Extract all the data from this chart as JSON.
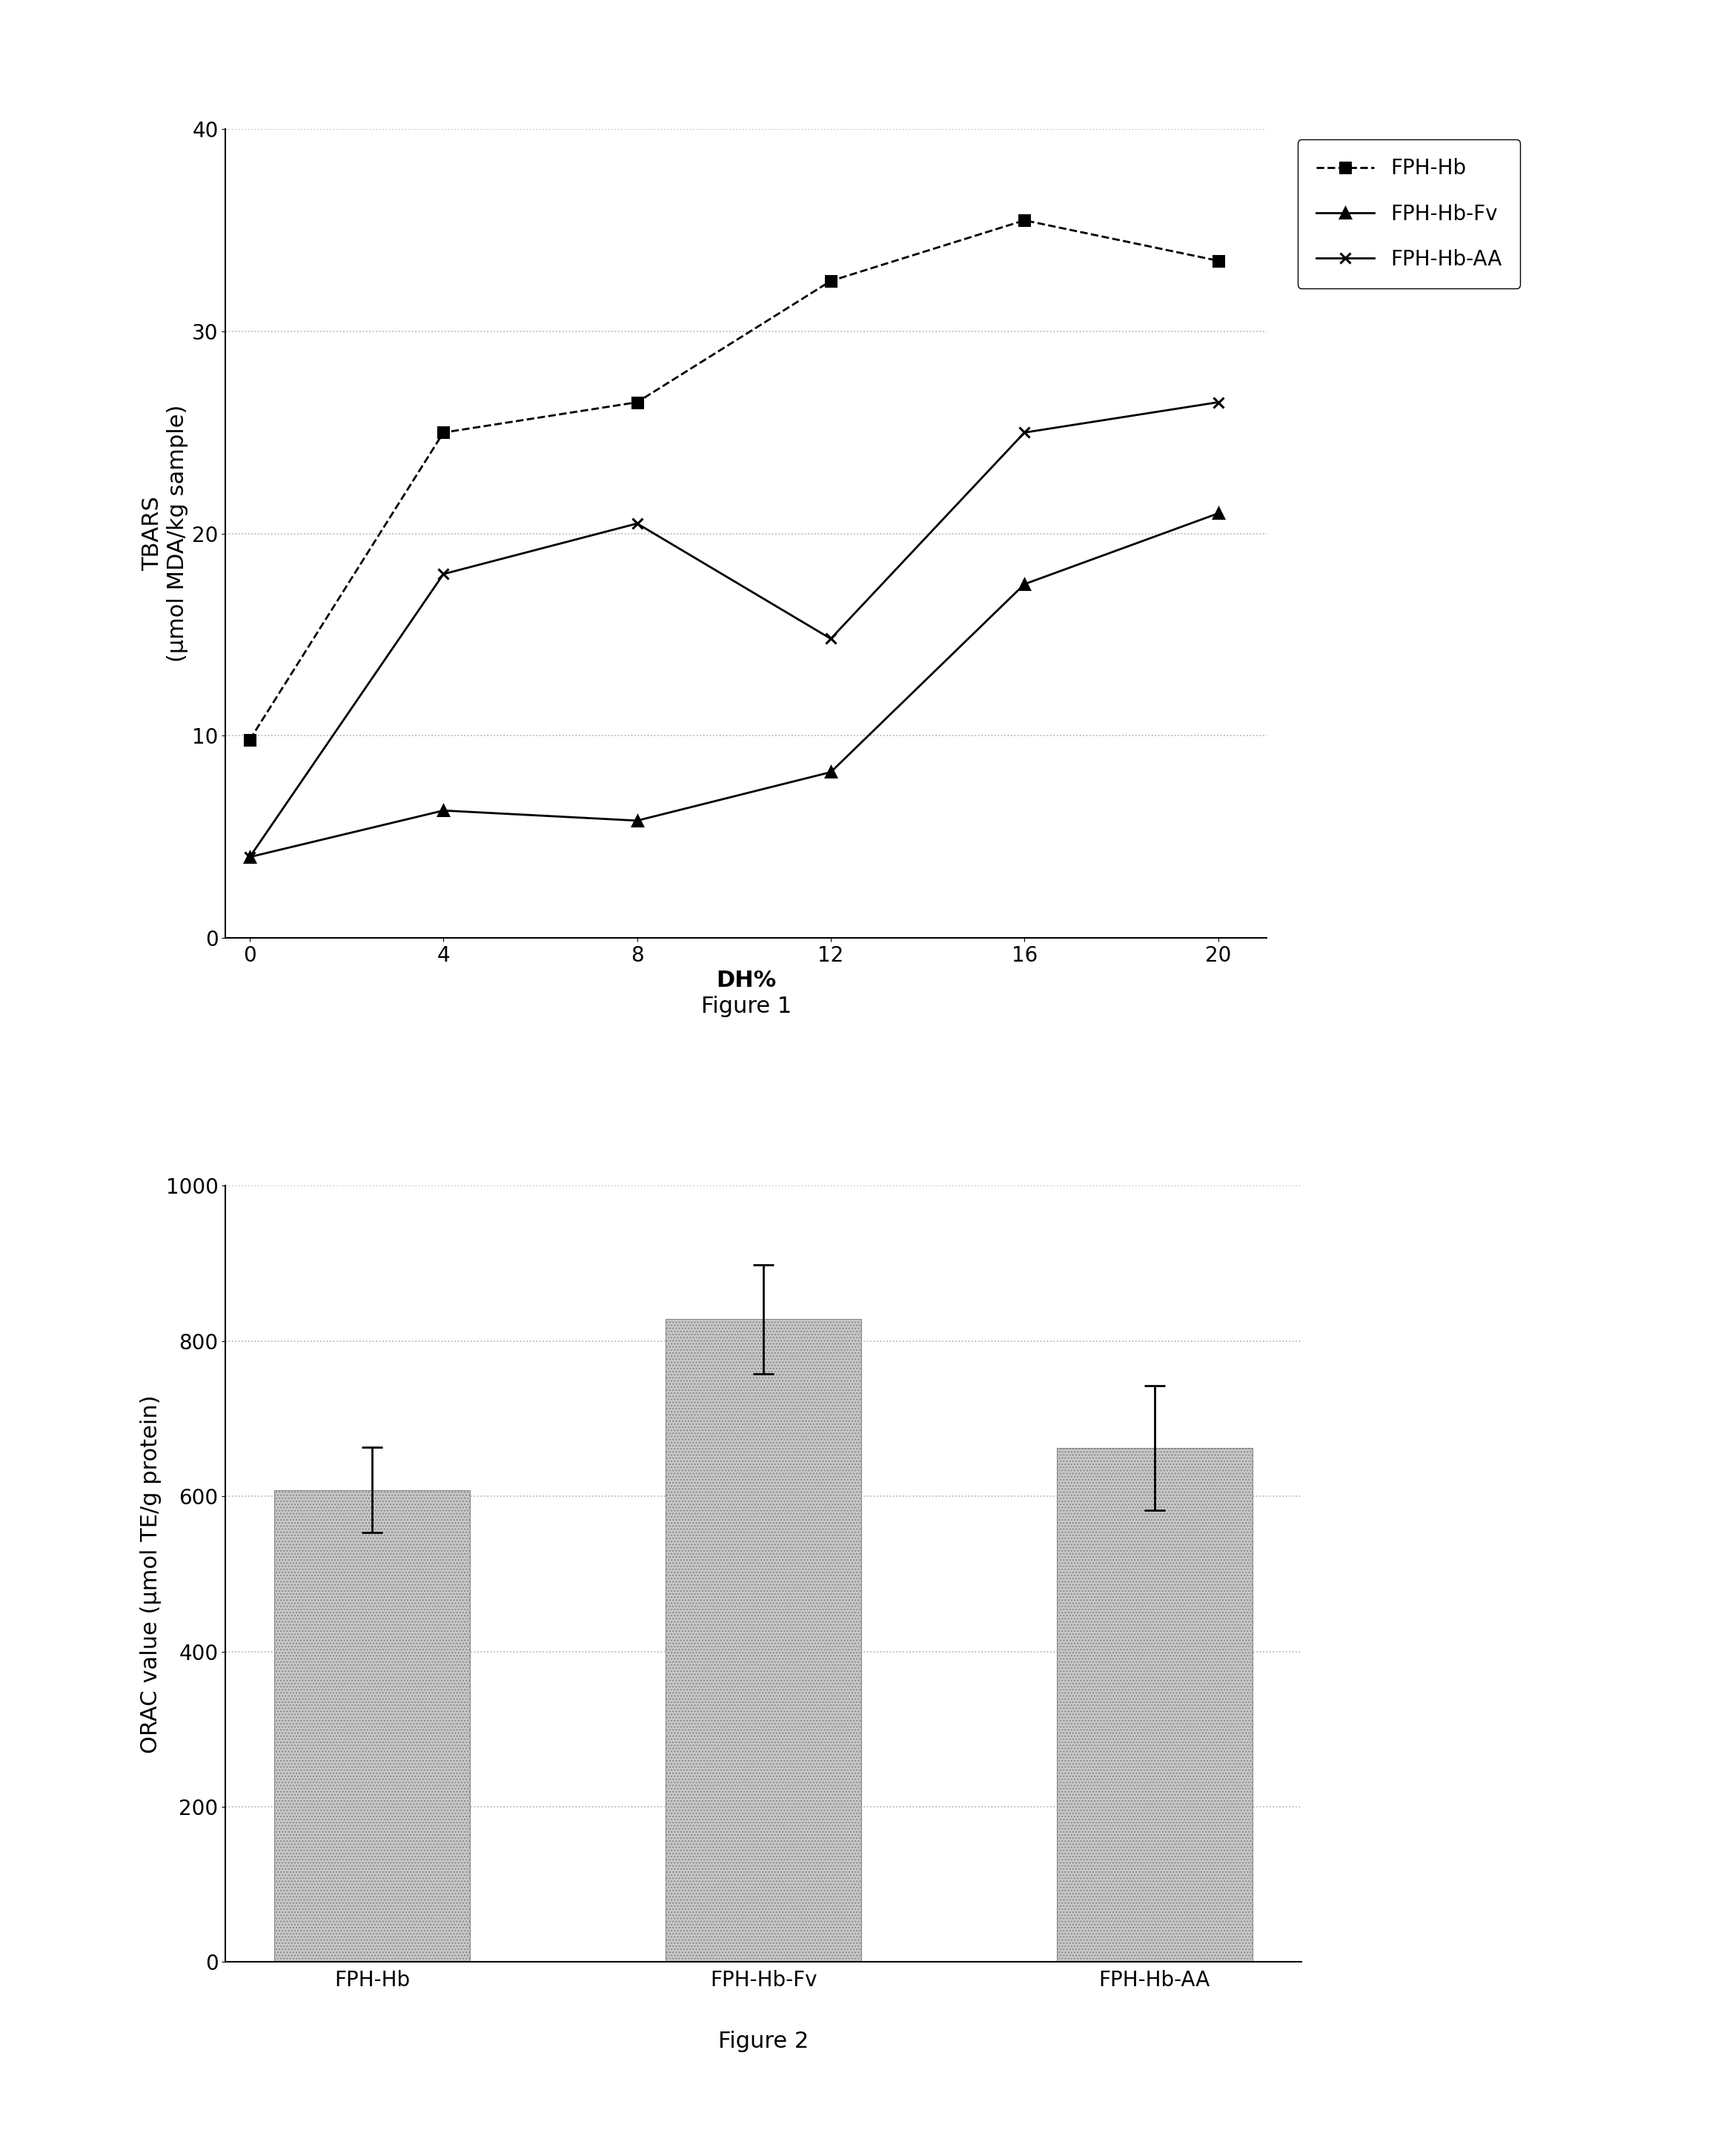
{
  "fig1": {
    "title": "Figure 1",
    "xlabel": "DH%",
    "ylabel": "TBARS\n(μmol MDA/kg sample)",
    "xlim": [
      -0.5,
      21
    ],
    "ylim": [
      0,
      40
    ],
    "xticks": [
      0,
      4,
      8,
      12,
      16,
      20
    ],
    "yticks": [
      0,
      10,
      20,
      30,
      40
    ],
    "series": [
      {
        "label": "FPH-Hb",
        "x": [
          0,
          4,
          8,
          12,
          16,
          20
        ],
        "y": [
          9.8,
          25.0,
          26.5,
          32.5,
          35.5,
          33.5
        ],
        "linestyle": "dashed",
        "marker": "s",
        "color": "#000000"
      },
      {
        "label": "FPH-Hb-Fv",
        "x": [
          0,
          4,
          8,
          12,
          16,
          20
        ],
        "y": [
          4.0,
          6.3,
          5.8,
          8.2,
          17.5,
          21.0
        ],
        "linestyle": "solid",
        "marker": "^",
        "color": "#000000"
      },
      {
        "label": "FPH-Hb-AA",
        "x": [
          0,
          4,
          8,
          12,
          16,
          20
        ],
        "y": [
          4.0,
          18.0,
          20.5,
          14.8,
          25.0,
          26.5
        ],
        "linestyle": "solid",
        "marker": "x",
        "color": "#000000"
      }
    ],
    "grid_color": "#b0b0b0",
    "grid_linestyle": "dotted"
  },
  "fig2": {
    "title": "Figure 2",
    "xlabel": "",
    "ylabel": "ORAC value (μmol TE/g protein)",
    "ylim": [
      0,
      1000
    ],
    "yticks": [
      0,
      200,
      400,
      600,
      800,
      1000
    ],
    "categories": [
      "FPH-Hb",
      "FPH-Hb-Fv",
      "FPH-Hb-AA"
    ],
    "values": [
      608,
      828,
      662
    ],
    "errors": [
      55,
      70,
      80
    ],
    "bar_color": "#c8c8c8",
    "bar_hatch": "....",
    "bar_width": 0.5,
    "grid_color": "#b0b0b0",
    "grid_linestyle": "dotted"
  },
  "background_color": "#ffffff",
  "fig_label_fontsize": 22,
  "axis_label_fontsize": 22,
  "tick_fontsize": 20,
  "legend_fontsize": 20
}
